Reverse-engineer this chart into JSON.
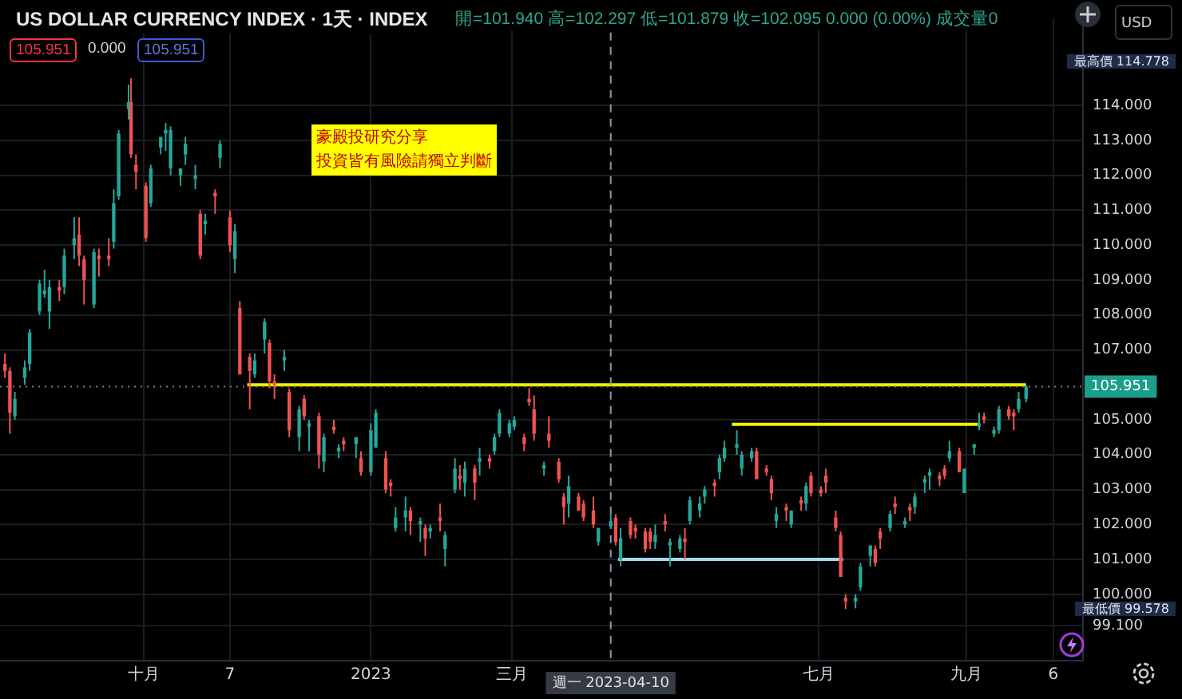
{
  "chart_data": {
    "type": "candlestick",
    "title": "US DOLLAR CURRENCY INDEX · 1天 · INDEX",
    "subtitle": "開=101.940 高=102.297 低=101.879 收=102.095 0.000 (0.00%) 成交量0",
    "x": [
      "2022-08-08",
      "2022-08-10",
      "2022-08-12",
      "2022-08-16",
      "2022-08-18",
      "2022-08-22",
      "2022-08-24",
      "2022-08-26",
      "2022-08-30",
      "2022-09-01",
      "2022-09-05",
      "2022-09-07",
      "2022-09-09",
      "2022-09-13",
      "2022-09-15",
      "2022-09-19",
      "2022-09-21",
      "2022-09-23",
      "2022-09-27",
      "2022-09-28",
      "2022-09-30",
      "2022-10-04",
      "2022-10-06",
      "2022-10-10",
      "2022-10-12",
      "2022-10-14",
      "2022-10-18",
      "2022-10-20",
      "2022-10-24",
      "2022-10-26",
      "2022-10-28",
      "2022-11-01",
      "2022-11-03",
      "2022-11-07",
      "2022-11-09",
      "2022-11-11",
      "2022-11-15",
      "2022-11-17",
      "2022-11-21",
      "2022-11-23",
      "2022-11-25",
      "2022-11-29",
      "2022-12-01",
      "2022-12-05",
      "2022-12-07",
      "2022-12-09",
      "2022-12-13",
      "2022-12-15",
      "2022-12-19",
      "2022-12-21",
      "2022-12-23",
      "2022-12-28",
      "2022-12-30",
      "2023-01-03",
      "2023-01-05",
      "2023-01-09",
      "2023-01-11",
      "2023-01-13",
      "2023-01-17",
      "2023-01-19",
      "2023-01-23",
      "2023-01-25",
      "2023-01-27",
      "2023-01-31",
      "2023-02-02",
      "2023-02-06",
      "2023-02-08",
      "2023-02-10",
      "2023-02-14",
      "2023-02-16",
      "2023-02-20",
      "2023-02-22",
      "2023-02-24",
      "2023-02-28",
      "2023-03-02",
      "2023-03-06",
      "2023-03-08",
      "2023-03-10",
      "2023-03-14",
      "2023-03-16",
      "2023-03-20",
      "2023-03-22",
      "2023-03-24",
      "2023-03-28",
      "2023-03-30",
      "2023-04-03",
      "2023-04-05",
      "2023-04-10",
      "2023-04-12",
      "2023-04-14",
      "2023-04-18",
      "2023-04-20",
      "2023-04-24",
      "2023-04-26",
      "2023-04-28",
      "2023-05-02",
      "2023-05-04",
      "2023-05-08",
      "2023-05-10",
      "2023-05-12",
      "2023-05-16",
      "2023-05-18",
      "2023-05-22",
      "2023-05-24",
      "2023-05-26",
      "2023-05-31",
      "2023-06-02",
      "2023-06-06",
      "2023-06-08",
      "2023-06-12",
      "2023-06-14",
      "2023-06-16",
      "2023-06-20",
      "2023-06-22",
      "2023-06-26",
      "2023-06-28",
      "2023-06-30",
      "2023-07-04",
      "2023-07-06",
      "2023-07-10",
      "2023-07-12",
      "2023-07-14",
      "2023-07-18",
      "2023-07-20",
      "2023-07-24",
      "2023-07-26",
      "2023-07-28",
      "2023-08-01",
      "2023-08-03",
      "2023-08-07",
      "2023-08-09",
      "2023-08-11",
      "2023-08-15",
      "2023-08-17",
      "2023-08-21",
      "2023-08-23",
      "2023-08-25",
      "2023-08-29",
      "2023-08-31",
      "2023-09-04",
      "2023-09-06",
      "2023-09-08",
      "2023-09-12",
      "2023-09-14",
      "2023-09-18",
      "2023-09-20",
      "2023-09-22",
      "2023-09-25"
    ],
    "ohlc": [
      [
        106.6,
        106.9,
        106.2,
        106.4
      ],
      [
        106.4,
        106.5,
        104.6,
        105.2
      ],
      [
        105.1,
        105.8,
        105.0,
        105.6
      ],
      [
        106.2,
        106.7,
        106.0,
        106.5
      ],
      [
        106.6,
        107.6,
        106.4,
        107.5
      ],
      [
        108.1,
        109.0,
        108.0,
        108.9
      ],
      [
        108.6,
        109.3,
        108.5,
        108.7
      ],
      [
        108.1,
        109.0,
        107.6,
        108.8
      ],
      [
        108.8,
        109.0,
        108.4,
        108.7
      ],
      [
        108.8,
        109.9,
        108.6,
        109.7
      ],
      [
        110.0,
        110.8,
        109.6,
        110.2
      ],
      [
        110.3,
        110.8,
        109.4,
        109.7
      ],
      [
        109.6,
        109.7,
        108.3,
        109.0
      ],
      [
        108.3,
        109.9,
        108.2,
        109.8
      ],
      [
        109.7,
        109.9,
        109.1,
        109.6
      ],
      [
        109.7,
        110.2,
        109.4,
        109.6
      ],
      [
        110.1,
        111.6,
        109.9,
        111.2
      ],
      [
        111.4,
        113.3,
        111.3,
        113.2
      ],
      [
        113.9,
        114.6,
        113.6,
        114.1
      ],
      [
        114.1,
        114.778,
        112.5,
        112.6
      ],
      [
        112.3,
        112.6,
        111.6,
        112.1
      ],
      [
        111.7,
        111.8,
        110.1,
        110.2
      ],
      [
        111.2,
        112.3,
        111.1,
        112.2
      ],
      [
        112.8,
        113.1,
        112.6,
        113.1
      ],
      [
        113.2,
        113.5,
        112.7,
        113.3
      ],
      [
        112.2,
        113.4,
        112.0,
        113.3
      ],
      [
        112.0,
        112.2,
        111.7,
        112.2
      ],
      [
        112.6,
        113.1,
        112.3,
        112.9
      ],
      [
        111.9,
        112.3,
        111.6,
        112.0
      ],
      [
        110.9,
        111.0,
        109.6,
        109.7
      ],
      [
        110.6,
        110.9,
        110.3,
        110.7
      ],
      [
        111.5,
        111.6,
        110.9,
        111.4
      ],
      [
        112.5,
        113.0,
        112.2,
        112.9
      ],
      [
        110.8,
        111.0,
        109.8,
        110.0
      ],
      [
        109.6,
        110.6,
        109.2,
        110.4
      ],
      [
        108.2,
        108.4,
        106.3,
        106.3
      ],
      [
        106.8,
        106.9,
        105.3,
        106.4
      ],
      [
        106.3,
        106.9,
        106.2,
        106.7
      ],
      [
        107.3,
        107.9,
        106.9,
        107.8
      ],
      [
        107.2,
        107.3,
        105.9,
        106.1
      ],
      [
        106.1,
        106.3,
        105.6,
        106.0
      ],
      [
        106.7,
        107.0,
        106.4,
        106.8
      ],
      [
        105.8,
        105.9,
        104.5,
        104.7
      ],
      [
        104.5,
        105.4,
        104.1,
        105.3
      ],
      [
        105.6,
        105.7,
        105.0,
        105.1
      ],
      [
        104.8,
        105.0,
        104.1,
        104.9
      ],
      [
        105.1,
        105.2,
        103.6,
        104.0
      ],
      [
        103.8,
        104.6,
        103.5,
        104.5
      ],
      [
        104.8,
        105.0,
        104.6,
        104.7
      ],
      [
        104.1,
        104.3,
        103.9,
        104.2
      ],
      [
        104.4,
        104.5,
        104.1,
        104.3
      ],
      [
        104.3,
        104.5,
        103.9,
        104.5
      ],
      [
        103.9,
        104.1,
        103.4,
        103.5
      ],
      [
        103.5,
        104.9,
        103.4,
        104.7
      ],
      [
        104.2,
        105.3,
        104.2,
        105.2
      ],
      [
        103.9,
        104.1,
        102.9,
        103.0
      ],
      [
        103.2,
        103.3,
        102.8,
        103.1
      ],
      [
        101.9,
        102.5,
        101.8,
        102.2
      ],
      [
        102.2,
        102.8,
        101.8,
        102.4
      ],
      [
        102.4,
        102.5,
        101.7,
        102.1
      ],
      [
        102.0,
        102.2,
        101.5,
        102.1
      ],
      [
        101.9,
        102.0,
        101.1,
        101.6
      ],
      [
        101.8,
        102.0,
        101.6,
        101.9
      ],
      [
        102.2,
        102.6,
        101.8,
        102.1
      ],
      [
        101.3,
        101.8,
        100.8,
        101.7
      ],
      [
        103.0,
        103.9,
        102.9,
        103.6
      ],
      [
        103.4,
        103.7,
        103.0,
        103.3
      ],
      [
        103.2,
        103.8,
        102.8,
        103.6
      ],
      [
        103.6,
        103.7,
        102.7,
        103.2
      ],
      [
        103.8,
        104.2,
        103.4,
        103.9
      ],
      [
        103.9,
        104.0,
        103.6,
        103.8
      ],
      [
        104.1,
        104.6,
        104.0,
        104.5
      ],
      [
        104.6,
        105.3,
        104.5,
        105.2
      ],
      [
        104.6,
        105.0,
        104.5,
        104.9
      ],
      [
        104.8,
        105.1,
        104.7,
        105.0
      ],
      [
        104.5,
        104.6,
        104.1,
        104.3
      ],
      [
        105.6,
        105.9,
        105.4,
        105.5
      ],
      [
        105.3,
        105.7,
        104.4,
        104.6
      ],
      [
        103.6,
        103.8,
        103.4,
        103.7
      ],
      [
        104.6,
        105.1,
        104.2,
        104.4
      ],
      [
        103.8,
        103.9,
        103.2,
        103.3
      ],
      [
        102.8,
        102.9,
        102.0,
        102.5
      ],
      [
        102.6,
        103.4,
        102.2,
        103.1
      ],
      [
        102.8,
        102.9,
        102.4,
        102.4
      ],
      [
        102.6,
        102.7,
        102.1,
        102.2
      ],
      [
        102.4,
        102.8,
        101.9,
        102.0
      ],
      [
        101.5,
        101.9,
        101.4,
        101.9
      ],
      [
        101.94,
        102.297,
        101.879,
        102.095
      ],
      [
        102.2,
        102.3,
        101.4,
        101.5
      ],
      [
        101.0,
        101.9,
        100.8,
        101.6
      ],
      [
        102.1,
        102.2,
        101.6,
        101.7
      ],
      [
        101.9,
        102.0,
        101.6,
        101.8
      ],
      [
        101.8,
        101.9,
        101.2,
        101.3
      ],
      [
        101.8,
        101.9,
        101.3,
        101.5
      ],
      [
        101.5,
        102.0,
        101.3,
        101.7
      ],
      [
        102.1,
        102.3,
        101.8,
        102.0
      ],
      [
        101.4,
        101.6,
        100.8,
        101.5
      ],
      [
        101.3,
        101.7,
        101.2,
        101.6
      ],
      [
        101.6,
        101.9,
        101.0,
        101.5
      ],
      [
        102.1,
        102.8,
        102.0,
        102.7
      ],
      [
        102.4,
        102.8,
        102.2,
        102.6
      ],
      [
        102.8,
        103.1,
        102.6,
        103.0
      ],
      [
        103.2,
        103.3,
        102.8,
        103.1
      ],
      [
        103.5,
        104.0,
        103.3,
        103.9
      ],
      [
        103.9,
        104.4,
        103.8,
        104.2
      ],
      [
        104.2,
        104.7,
        104.0,
        104.3
      ],
      [
        103.6,
        104.1,
        103.4,
        104.0
      ],
      [
        103.9,
        104.2,
        103.8,
        104.1
      ],
      [
        104.1,
        104.2,
        103.3,
        103.3
      ],
      [
        103.6,
        103.7,
        103.4,
        103.5
      ],
      [
        103.3,
        103.4,
        102.7,
        102.9
      ],
      [
        102.1,
        102.5,
        101.9,
        102.3
      ],
      [
        102.5,
        102.6,
        102.1,
        102.4
      ],
      [
        102.0,
        102.4,
        101.9,
        102.4
      ],
      [
        102.7,
        102.8,
        102.4,
        102.6
      ],
      [
        102.6,
        103.2,
        102.4,
        103.1
      ],
      [
        103.4,
        103.5,
        102.8,
        102.9
      ],
      [
        103.0,
        103.1,
        102.8,
        102.9
      ],
      [
        103.4,
        103.6,
        102.9,
        103.2
      ],
      [
        102.2,
        102.4,
        101.8,
        101.9
      ],
      [
        101.7,
        101.8,
        100.5,
        100.5
      ],
      [
        99.9,
        100.0,
        99.578,
        99.8
      ],
      [
        99.8,
        100.0,
        99.6,
        99.9
      ],
      [
        100.2,
        100.9,
        100.1,
        100.8
      ],
      [
        101.1,
        101.4,
        100.8,
        101.4
      ],
      [
        101.3,
        101.4,
        100.8,
        100.9
      ],
      [
        101.8,
        101.9,
        101.3,
        101.6
      ],
      [
        101.9,
        102.4,
        101.8,
        102.3
      ],
      [
        102.6,
        102.8,
        102.3,
        102.5
      ],
      [
        102.0,
        102.2,
        101.9,
        102.1
      ],
      [
        102.5,
        102.6,
        102.1,
        102.4
      ],
      [
        102.5,
        102.9,
        102.3,
        102.8
      ],
      [
        103.2,
        103.4,
        102.9,
        103.3
      ],
      [
        103.4,
        103.6,
        103.0,
        103.5
      ],
      [
        103.4,
        103.5,
        103.1,
        103.3
      ],
      [
        103.6,
        103.7,
        103.3,
        103.4
      ],
      [
        103.9,
        104.4,
        103.8,
        104.1
      ],
      [
        104.1,
        104.2,
        103.5,
        103.5
      ],
      [
        102.9,
        103.6,
        102.9,
        103.6
      ],
      [
        104.2,
        104.3,
        104.0,
        104.3
      ],
      [
        104.8,
        105.2,
        104.7,
        104.9
      ],
      [
        105.1,
        105.2,
        104.9,
        105.0
      ],
      [
        104.6,
        104.8,
        104.5,
        104.7
      ],
      [
        104.7,
        105.4,
        104.6,
        105.3
      ],
      [
        105.3,
        105.4,
        105.0,
        105.1
      ],
      [
        105.2,
        105.3,
        104.7,
        105.1
      ],
      [
        105.3,
        105.8,
        105.2,
        105.6
      ],
      [
        105.6,
        106.0,
        105.5,
        105.951
      ]
    ],
    "colors": [
      "#ef5350",
      "#ef5350",
      "#26a69a",
      "#26a69a",
      "#26a69a",
      "#26a69a",
      "#26a69a",
      "#26a69a",
      "#ef5350",
      "#26a69a",
      "#26a69a",
      "#ef5350",
      "#ef5350",
      "#26a69a",
      "#ef5350",
      "#ef5350",
      "#26a69a",
      "#26a69a",
      "#26a69a",
      "#ef5350",
      "#ef5350",
      "#ef5350",
      "#26a69a",
      "#26a69a",
      "#26a69a",
      "#26a69a",
      "#26a69a",
      "#26a69a",
      "#26a69a",
      "#ef5350",
      "#26a69a",
      "#ef5350",
      "#26a69a",
      "#ef5350",
      "#26a69a",
      "#ef5350",
      "#ef5350",
      "#26a69a",
      "#26a69a",
      "#ef5350",
      "#ef5350",
      "#26a69a",
      "#ef5350",
      "#26a69a",
      "#ef5350",
      "#26a69a",
      "#ef5350",
      "#26a69a",
      "#ef5350",
      "#26a69a",
      "#ef5350",
      "#26a69a",
      "#ef5350",
      "#26a69a",
      "#26a69a",
      "#ef5350",
      "#ef5350",
      "#26a69a",
      "#26a69a",
      "#ef5350",
      "#26a69a",
      "#ef5350",
      "#26a69a",
      "#ef5350",
      "#26a69a",
      "#26a69a",
      "#ef5350",
      "#26a69a",
      "#ef5350",
      "#26a69a",
      "#ef5350",
      "#26a69a",
      "#26a69a",
      "#26a69a",
      "#26a69a",
      "#ef5350",
      "#ef5350",
      "#ef5350",
      "#26a69a",
      "#ef5350",
      "#ef5350",
      "#ef5350",
      "#26a69a",
      "#ef5350",
      "#ef5350",
      "#ef5350",
      "#26a69a",
      "#26a69a",
      "#ef5350",
      "#26a69a",
      "#ef5350",
      "#ef5350",
      "#ef5350",
      "#ef5350",
      "#26a69a",
      "#ef5350",
      "#26a69a",
      "#26a69a",
      "#ef5350",
      "#26a69a",
      "#26a69a",
      "#26a69a",
      "#ef5350",
      "#26a69a",
      "#26a69a",
      "#26a69a",
      "#26a69a",
      "#26a69a",
      "#ef5350",
      "#ef5350",
      "#ef5350",
      "#26a69a",
      "#ef5350",
      "#26a69a",
      "#ef5350",
      "#26a69a",
      "#ef5350",
      "#ef5350",
      "#ef5350",
      "#ef5350",
      "#ef5350",
      "#ef5350",
      "#26a69a",
      "#26a69a",
      "#26a69a",
      "#ef5350",
      "#ef5350",
      "#26a69a",
      "#ef5350",
      "#26a69a",
      "#ef5350",
      "#26a69a",
      "#26a69a",
      "#26a69a",
      "#ef5350",
      "#ef5350",
      "#26a69a",
      "#ef5350",
      "#26a69a",
      "#26a69a",
      "#26a69a",
      "#ef5350",
      "#26a69a",
      "#26a69a",
      "#ef5350",
      "#ef5350",
      "#26a69a",
      "#26a69a"
    ],
    "series": [
      {
        "type": "line",
        "color": "#f0f000",
        "x": [
          "2022-11-14",
          "2023-09-25"
        ],
        "values": [
          106.0,
          106.0
        ]
      },
      {
        "type": "line",
        "color": "#f0f000",
        "x": [
          "2023-05-29",
          "2023-09-06"
        ],
        "values": [
          104.87,
          104.87
        ]
      },
      {
        "type": "line",
        "color": "#a6d9ee",
        "x": [
          "2023-04-13",
          "2023-07-13"
        ],
        "values": [
          101.0,
          101.0
        ]
      }
    ],
    "xlim": [
      "2022-08-06",
      "2023-10-18"
    ],
    "xticks": [
      {
        "value": "2022-10-03",
        "label": "十月"
      },
      {
        "value": "2022-11-07",
        "label": "7"
      },
      {
        "value": "2023-01-03",
        "label": "2023"
      },
      {
        "value": "2023-03-01",
        "label": "三月"
      },
      {
        "value": "2023-07-03",
        "label": "七月"
      },
      {
        "value": "2023-09-01",
        "label": "九月"
      },
      {
        "value": "2023-10-06",
        "label": "6"
      }
    ],
    "ylim": [
      98.1,
      116.5
    ],
    "yticks": [
      {
        "value": 99.1,
        "label": "99.100"
      },
      {
        "value": 100,
        "label": "100.000"
      },
      {
        "value": 101,
        "label": "101.000"
      },
      {
        "value": 102,
        "label": "102.000"
      },
      {
        "value": 103,
        "label": "103.000"
      },
      {
        "value": 104,
        "label": "104.000"
      },
      {
        "value": 105,
        "label": "105.000"
      },
      {
        "value": 107,
        "label": "107.000"
      },
      {
        "value": 108,
        "label": "108.000"
      },
      {
        "value": 109,
        "label": "109.000"
      },
      {
        "value": 110,
        "label": "110.000"
      },
      {
        "value": 111,
        "label": "111.000"
      },
      {
        "value": 112,
        "label": "112.000"
      },
      {
        "value": 113,
        "label": "113.000"
      },
      {
        "value": 114,
        "label": "114.000"
      }
    ],
    "ref_lines": [
      {
        "axis": "y",
        "value": 105.951,
        "label": "105.951",
        "color": "#787b86",
        "line_style": "dotted"
      },
      {
        "axis": "x",
        "value": "2023-04-10",
        "label": "週一 2023-04-10",
        "color": "#9598a1",
        "line_style": "dashed"
      }
    ],
    "annotations": [
      "105.951",
      "0.000",
      "105.951",
      "豪殿投研究分享",
      "投資皆有風險請獨立判斷",
      "USD",
      "最高價 114.778",
      "最低價 99.578"
    ],
    "grid": true,
    "legend": false
  }
}
